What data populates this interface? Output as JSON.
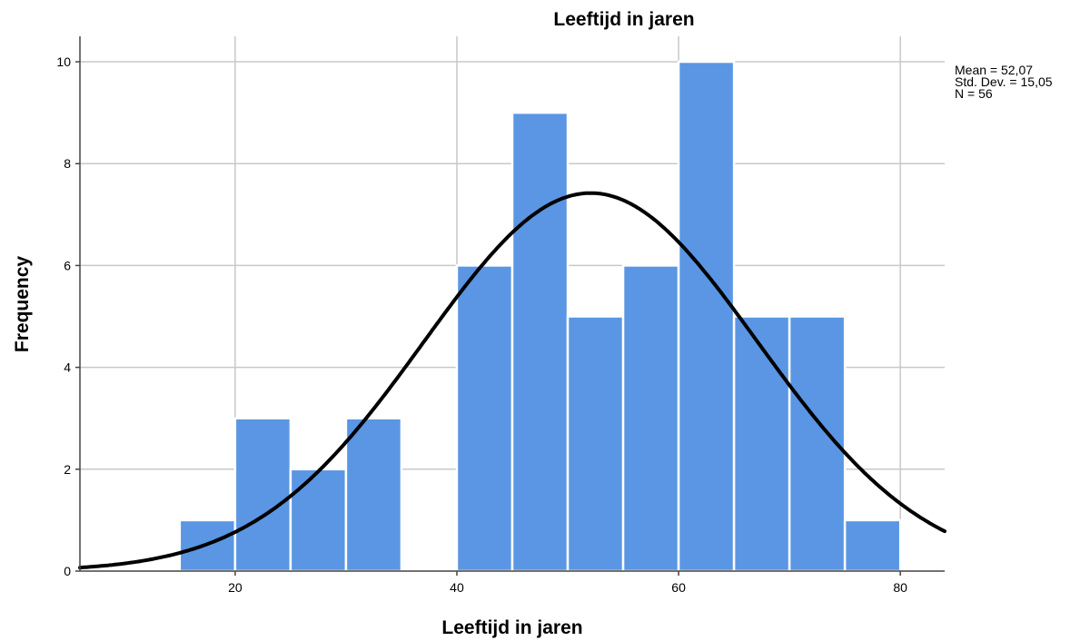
{
  "chart_data": {
    "type": "bar",
    "title": "Leeftijd in jaren",
    "xlabel": "Leeftijd in jaren",
    "ylabel": "Frequency",
    "xlim": [
      6,
      84
    ],
    "ylim": [
      0,
      10.5
    ],
    "xticks": [
      20,
      40,
      60,
      80
    ],
    "yticks": [
      0,
      2,
      4,
      6,
      8,
      10
    ],
    "grid": true,
    "bin_width": 5,
    "bins": [
      {
        "start": 15,
        "end": 20,
        "value": 1
      },
      {
        "start": 20,
        "end": 25,
        "value": 3
      },
      {
        "start": 25,
        "end": 30,
        "value": 2
      },
      {
        "start": 30,
        "end": 35,
        "value": 3
      },
      {
        "start": 35,
        "end": 40,
        "value": 0
      },
      {
        "start": 40,
        "end": 45,
        "value": 6
      },
      {
        "start": 45,
        "end": 50,
        "value": 9
      },
      {
        "start": 50,
        "end": 55,
        "value": 5
      },
      {
        "start": 55,
        "end": 60,
        "value": 6
      },
      {
        "start": 60,
        "end": 65,
        "value": 10
      },
      {
        "start": 65,
        "end": 70,
        "value": 5
      },
      {
        "start": 70,
        "end": 75,
        "value": 5
      },
      {
        "start": 75,
        "end": 80,
        "value": 1
      }
    ],
    "normal_curve": {
      "mean": 52.07,
      "std": 15.05,
      "n": 56
    },
    "stats": [
      "Mean = 52,07",
      "Std. Dev. = 15,05",
      "N = 56"
    ],
    "colors": {
      "bar": "#5a96e3",
      "bar_edge": "#ffffff",
      "curve": "#000000",
      "grid": "#c8c8c8"
    }
  }
}
